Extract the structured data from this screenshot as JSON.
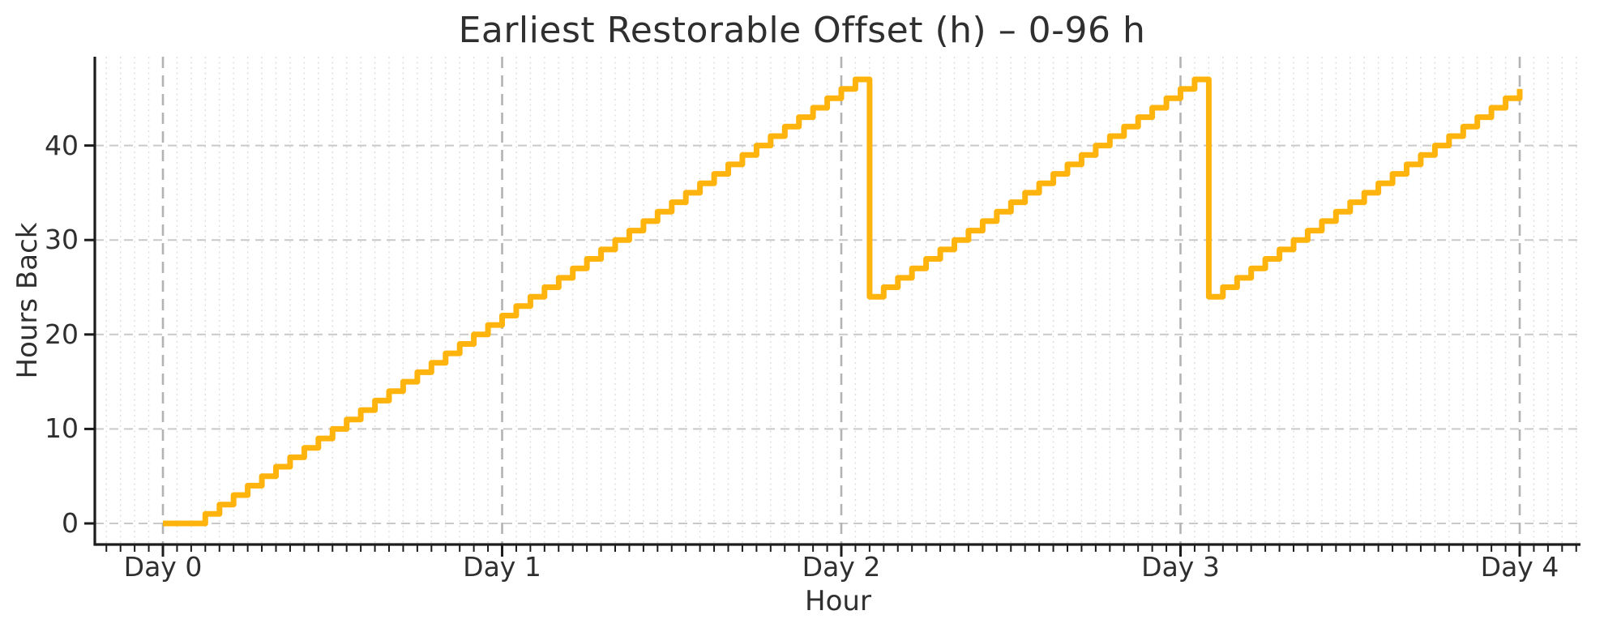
{
  "figure": {
    "title": "Earliest Restorable Offset (h) – 0-96 h",
    "xlabel": "Hour",
    "ylabel": "Hours Back"
  },
  "chart_data": {
    "type": "line",
    "drawstyle": "steps-post",
    "title": "Earliest Restorable Offset (h) – 0-96 h",
    "xlabel": "Hour",
    "ylabel": "Hours Back",
    "x_hours_start": 0,
    "x_hours_step": 1,
    "values": [
      0,
      0,
      0,
      1,
      2,
      3,
      4,
      5,
      6,
      7,
      8,
      9,
      10,
      11,
      12,
      13,
      14,
      15,
      16,
      17,
      18,
      19,
      20,
      21,
      22,
      23,
      24,
      25,
      26,
      27,
      28,
      29,
      30,
      31,
      32,
      33,
      34,
      35,
      36,
      37,
      38,
      39,
      40,
      41,
      42,
      43,
      44,
      45,
      46,
      47,
      24,
      25,
      26,
      27,
      28,
      29,
      30,
      31,
      32,
      33,
      34,
      35,
      36,
      37,
      38,
      39,
      40,
      41,
      42,
      43,
      44,
      45,
      46,
      47,
      24,
      25,
      26,
      27,
      28,
      29,
      30,
      31,
      32,
      33,
      34,
      35,
      36,
      37,
      38,
      39,
      40,
      41,
      42,
      43,
      44,
      45,
      46
    ],
    "x_ticks": [
      {
        "hour": 0,
        "label": "Day 0"
      },
      {
        "hour": 24,
        "label": "Day 1"
      },
      {
        "hour": 48,
        "label": "Day 2"
      },
      {
        "hour": 72,
        "label": "Day 3"
      },
      {
        "hour": 96,
        "label": "Day 4"
      }
    ],
    "y_ticks": [
      0,
      10,
      20,
      30,
      40
    ],
    "xlim": [
      -4.8,
      100.8
    ],
    "ylim": [
      -2.35,
      49.35
    ],
    "minor_x_grid_step_hours": 1,
    "grid": "major dashed (x days + y tens), minor dotted vertical hourly",
    "legend": "none",
    "line_color": "#FFB30D"
  },
  "colors": {
    "background": "#ffffff",
    "line": "#FFB30D",
    "spine": "#1c1c1c",
    "text": "#2f2f2f",
    "major_grid_h": "#c9c9c9",
    "major_grid_day": "#b3b3b3",
    "minor_grid": "#dedede"
  }
}
